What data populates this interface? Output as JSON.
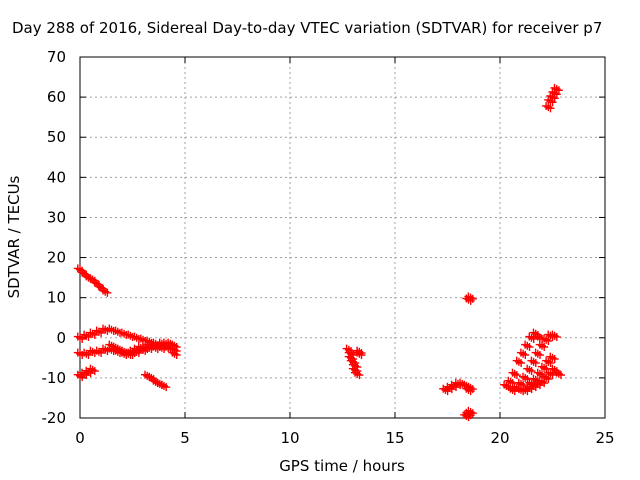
{
  "chart_data": {
    "type": "scatter",
    "title": "Day 288 of 2016, Sidereal Day-to-day VTEC variation (SDTVAR) for receiver p7",
    "xlabel": "GPS time / hours",
    "ylabel": "SDTVAR / TECUs",
    "xlim": [
      0,
      25
    ],
    "ylim": [
      -20,
      70
    ],
    "xticks": [
      "0",
      "5",
      "10",
      "15",
      "20",
      "25"
    ],
    "yticks": [
      "-20",
      "-10",
      "0",
      "10",
      "20",
      "30",
      "40",
      "50",
      "60",
      "70"
    ],
    "grid": true,
    "marker": "plus",
    "color": "#ff0000",
    "series": [
      {
        "x": [
          0.0,
          0.2,
          0.4,
          0.6,
          0.8,
          1.0,
          1.2,
          0.0,
          0.3,
          0.6,
          0.9,
          1.2,
          1.5,
          1.8,
          2.1,
          2.4,
          2.7,
          3.0,
          3.3,
          3.6,
          3.9,
          4.2,
          0.0,
          0.3,
          0.6,
          0.9,
          1.2,
          1.5,
          1.8,
          2.1,
          2.4,
          2.7,
          3.0,
          3.3,
          3.6,
          3.9,
          4.2,
          1.5,
          1.7,
          1.9,
          2.1,
          2.3,
          2.5,
          2.7,
          2.9,
          3.1,
          3.3,
          3.5,
          3.7,
          3.9,
          4.1,
          4.3,
          4.5,
          4.5,
          4.5,
          0.0,
          0.2,
          0.4,
          0.6,
          3.2,
          3.4,
          3.6,
          3.8,
          4.0,
          12.8,
          12.9,
          13.0,
          13.1,
          13.2,
          13.3,
          12.9,
          13.1,
          13.3,
          17.4,
          17.6,
          17.8,
          18.0,
          18.2,
          18.4,
          18.6,
          18.5,
          18.4,
          18.5,
          18.6,
          18.5,
          18.6,
          20.3,
          20.5,
          20.7,
          20.9,
          21.1,
          21.3,
          21.5,
          21.7,
          21.9,
          20.6,
          20.8,
          21.0,
          21.2,
          21.4,
          21.6,
          21.8,
          22.0,
          22.2,
          22.4,
          22.6,
          21.0,
          21.2,
          21.4,
          21.6,
          21.8,
          22.0,
          22.2,
          22.4,
          22.6,
          22.8,
          21.5,
          21.7,
          21.9,
          22.1,
          22.3,
          22.5,
          22.3,
          22.4,
          22.5,
          22.6,
          22.7
        ],
        "y": [
          17,
          16,
          15,
          14.5,
          13.5,
          12.5,
          11.5,
          0,
          0.5,
          1,
          1.5,
          2,
          2,
          1.5,
          1,
          0.5,
          0,
          -0.5,
          -1,
          -1.5,
          -2,
          -2.5,
          -4,
          -4,
          -3.5,
          -3.5,
          -3,
          -3,
          -3.5,
          -4,
          -4,
          -3.5,
          -3,
          -2.5,
          -2.5,
          -2.5,
          -2.5,
          -2,
          -2.5,
          -3,
          -3.5,
          -4,
          -3.5,
          -3,
          -2.5,
          -2.5,
          -2,
          -2,
          -2,
          -1.5,
          -1.5,
          -1.5,
          -2,
          -3,
          -4,
          -9.5,
          -9,
          -8.5,
          -8,
          -9.5,
          -10,
          -11,
          -11.5,
          -12,
          -3,
          -4,
          -6,
          -8,
          -9,
          -3.5,
          -5,
          -7,
          -4,
          -13,
          -12.5,
          -12,
          -11.5,
          -11.5,
          -12,
          -12.5,
          -13,
          -19.5,
          -19,
          -18.5,
          9.5,
          10,
          -12,
          -11,
          -9,
          -6,
          -4,
          -2,
          0,
          1,
          0,
          -13,
          -12.5,
          -11.5,
          -10,
          -8,
          -6,
          -4,
          -2,
          -0.5,
          0.5,
          0.5,
          -13,
          -13,
          -12.5,
          -12,
          -11.5,
          -11,
          -10,
          -9,
          -8,
          -9,
          -11.5,
          -10.5,
          -9,
          -7.5,
          -6,
          -5,
          57.5,
          59,
          60,
          61,
          62
        ]
      }
    ]
  }
}
